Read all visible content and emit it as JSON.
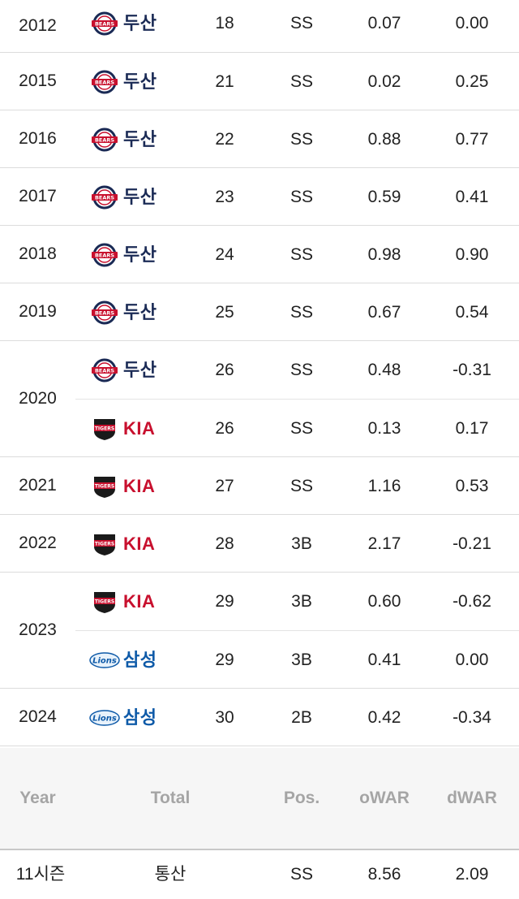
{
  "rows": [
    {
      "year": "2012",
      "entries": [
        {
          "team": "두산",
          "logo": "bears-logo",
          "age": "18",
          "pos": "SS",
          "owar": "0.07",
          "dwar": "0.00"
        }
      ]
    },
    {
      "year": "2015",
      "entries": [
        {
          "team": "두산",
          "logo": "bears-logo",
          "age": "21",
          "pos": "SS",
          "owar": "0.02",
          "dwar": "0.25"
        }
      ]
    },
    {
      "year": "2016",
      "entries": [
        {
          "team": "두산",
          "logo": "bears-logo",
          "age": "22",
          "pos": "SS",
          "owar": "0.88",
          "dwar": "0.77"
        }
      ]
    },
    {
      "year": "2017",
      "entries": [
        {
          "team": "두산",
          "logo": "bears-logo",
          "age": "23",
          "pos": "SS",
          "owar": "0.59",
          "dwar": "0.41"
        }
      ]
    },
    {
      "year": "2018",
      "entries": [
        {
          "team": "두산",
          "logo": "bears-logo",
          "age": "24",
          "pos": "SS",
          "owar": "0.98",
          "dwar": "0.90"
        }
      ]
    },
    {
      "year": "2019",
      "entries": [
        {
          "team": "두산",
          "logo": "bears-logo",
          "age": "25",
          "pos": "SS",
          "owar": "0.67",
          "dwar": "0.54"
        }
      ]
    },
    {
      "year": "2020",
      "entries": [
        {
          "team": "두산",
          "logo": "bears-logo",
          "age": "26",
          "pos": "SS",
          "owar": "0.48",
          "dwar": "-0.31"
        },
        {
          "team": "KIA",
          "logo": "tigers-logo",
          "age": "26",
          "pos": "SS",
          "owar": "0.13",
          "dwar": "0.17"
        }
      ]
    },
    {
      "year": "2021",
      "entries": [
        {
          "team": "KIA",
          "logo": "tigers-logo",
          "age": "27",
          "pos": "SS",
          "owar": "1.16",
          "dwar": "0.53"
        }
      ]
    },
    {
      "year": "2022",
      "entries": [
        {
          "team": "KIA",
          "logo": "tigers-logo",
          "age": "28",
          "pos": "3B",
          "owar": "2.17",
          "dwar": "-0.21"
        }
      ]
    },
    {
      "year": "2023",
      "entries": [
        {
          "team": "KIA",
          "logo": "tigers-logo",
          "age": "29",
          "pos": "3B",
          "owar": "0.60",
          "dwar": "-0.62"
        },
        {
          "team": "삼성",
          "logo": "lions-logo",
          "age": "29",
          "pos": "3B",
          "owar": "0.41",
          "dwar": "0.00"
        }
      ]
    },
    {
      "year": "2024",
      "entries": [
        {
          "team": "삼성",
          "logo": "lions-logo",
          "age": "30",
          "pos": "2B",
          "owar": "0.42",
          "dwar": "-0.34"
        }
      ]
    }
  ],
  "summary": {
    "headers": {
      "year": "Year",
      "total": "Total",
      "pos": "Pos.",
      "owar": "oWAR",
      "dwar": "dWAR"
    },
    "total": {
      "year": "11시즌",
      "label": "통산",
      "pos": "SS",
      "owar": "8.56",
      "dwar": "2.09"
    }
  },
  "logo_text": {
    "bears-logo": "BEARS",
    "tigers-logo": "TIGERS",
    "lions-logo": "Lions"
  },
  "colors": {
    "doosan": "#1a2a55",
    "kia": "#c8102e",
    "samsung": "#0e5aa8",
    "header_text": "#a5a5a5"
  }
}
